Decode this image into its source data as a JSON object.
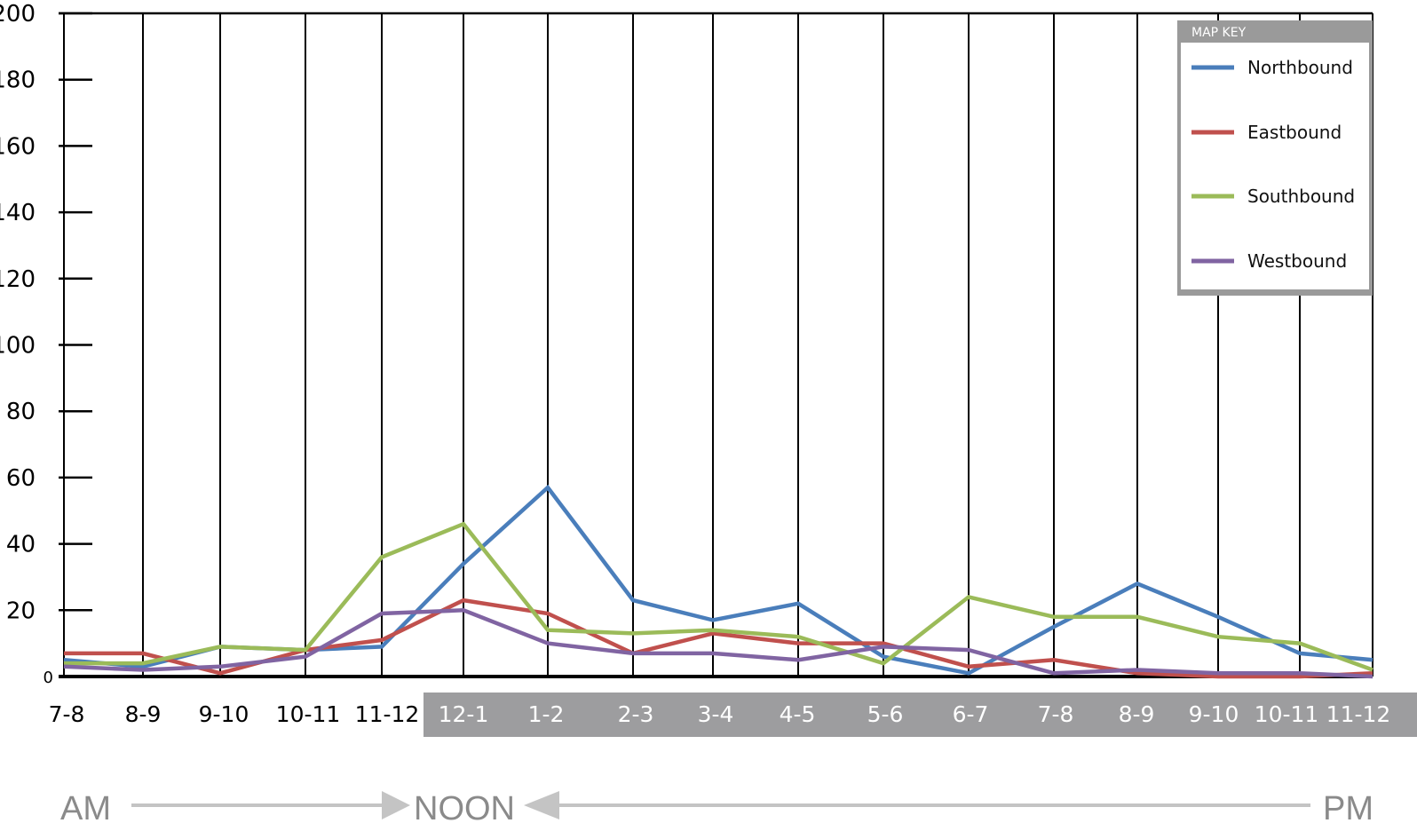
{
  "chart_data": {
    "type": "line",
    "title": "",
    "xlabel": "",
    "ylabel": "",
    "ylim": [
      0,
      200
    ],
    "yticks": [
      0,
      20,
      40,
      60,
      80,
      100,
      120,
      140,
      160,
      180,
      200
    ],
    "categories": [
      "7-8",
      "8-9",
      "9-10",
      "10-11",
      "11-12",
      "12-1",
      "1-2",
      "2-3",
      "3-4",
      "4-5",
      "5-6",
      "6-7",
      "7-8",
      "8-9",
      "9-10",
      "10-11",
      "11-12"
    ],
    "pm_start_index": 5,
    "grid": "vertical",
    "legend": {
      "title": "MAP KEY",
      "position": "top-right"
    },
    "series": [
      {
        "name": "Northbound",
        "color": "#4a7ebb",
        "values": [
          5,
          3,
          9,
          8,
          9,
          34,
          57,
          23,
          17,
          22,
          6,
          1,
          15,
          28,
          18,
          7,
          5
        ]
      },
      {
        "name": "Eastbound",
        "color": "#c0504d",
        "values": [
          7,
          7,
          1,
          8,
          11,
          23,
          19,
          7,
          13,
          10,
          10,
          3,
          5,
          1,
          0,
          0,
          1
        ]
      },
      {
        "name": "Southbound",
        "color": "#9bbb59",
        "values": [
          4,
          4,
          9,
          8,
          36,
          46,
          14,
          13,
          14,
          12,
          4,
          24,
          18,
          18,
          12,
          10,
          2
        ]
      },
      {
        "name": "Westbound",
        "color": "#8064a2",
        "values": [
          3,
          2,
          3,
          6,
          19,
          20,
          10,
          7,
          7,
          5,
          9,
          8,
          1,
          2,
          1,
          1,
          0
        ]
      }
    ]
  },
  "footer": {
    "am": "AM",
    "noon": "NOON",
    "pm": "PM"
  }
}
